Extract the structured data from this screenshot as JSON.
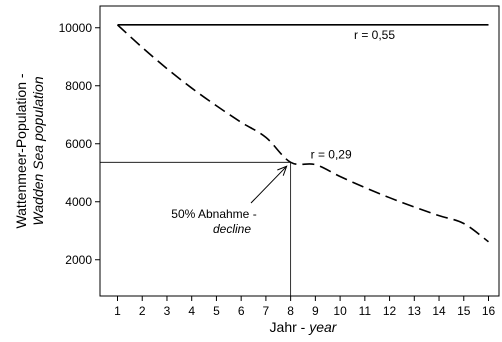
{
  "chart_data": {
    "type": "line",
    "xlabel": {
      "main": "Jahr - ",
      "italic": "year"
    },
    "ylabel": {
      "line1": "Wattenmeer-Population -",
      "line2": "Wadden Sea population"
    },
    "xlim": [
      1,
      16
    ],
    "ylim": [
      750,
      10750
    ],
    "xticks": [
      1,
      2,
      3,
      4,
      5,
      6,
      7,
      8,
      9,
      10,
      11,
      12,
      13,
      14,
      15,
      16
    ],
    "yticks": [
      2000,
      4000,
      6000,
      8000,
      10000
    ],
    "series": [
      {
        "label": "r = 0,55",
        "style": "solid",
        "x": [
          1,
          16
        ],
        "y": [
          10100,
          10100
        ]
      },
      {
        "label": "r = 0,29",
        "style": "dashed",
        "x": [
          1,
          2,
          3,
          4,
          5,
          6,
          7,
          8,
          9,
          10,
          11,
          12,
          13,
          14,
          15,
          16
        ],
        "y": [
          10100,
          9320,
          8590,
          7920,
          7310,
          6740,
          6220,
          5360,
          5280,
          4870,
          4490,
          4140,
          3820,
          3520,
          3250,
          2620
        ]
      }
    ],
    "reference": {
      "x": 8,
      "y": 5360
    },
    "annotation": {
      "line1": "50% Abnahme -",
      "line2": "decline"
    }
  }
}
